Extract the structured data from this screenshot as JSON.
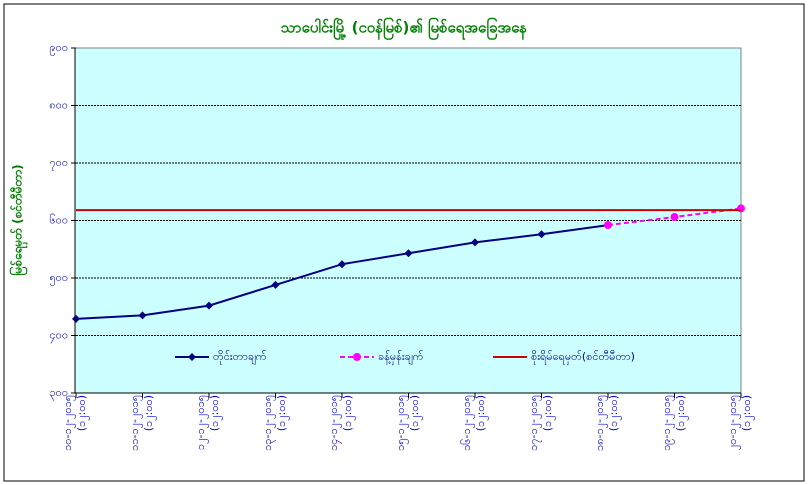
{
  "chart_data": {
    "type": "line",
    "title": "သာပေါင်းမြို့ (ငဝန်မြစ်)၏ မြစ်ရေအခြေအနေ",
    "y_label": "မြစ်ရေမှတ် (စင်တီမီတာ)",
    "categories": [
      "၁၀-၁၂-၂၀၁၅ (၁၂:၀၀)",
      "၁၁-၁၂-၂၀၁၅ (၁၂:၀၀)",
      "၁၂-၁၂-၂၀၁၅ (၁၂:၀၀)",
      "၁၃-၁၂-၂၀၁၅ (၁၂:၀၀)",
      "၁၄-၁၂-၂၀၁၅ (၁၂:၀၀)",
      "၁၅-၁၂-၂၀၁၅ (၁၂:၀၀)",
      "၁၆-၁၂-၂၀၁၅ (၁၂:၀၀)",
      "၁၇-၁၂-၂၀၁၅ (၁၂:၀၀)",
      "၁၈-၁၂-၂၀၁၅ (၁၂:၀၀)",
      "၁၉-၁၂-၂၀၁၅ (၁၂:၀၀)",
      "၂၀-၁၂-၂၀၁၅ (၁၂:၀၀)"
    ],
    "series": [
      {
        "name": "တိုင်းတာချက်",
        "color": "#000080",
        "marker": "diamond",
        "dashed": false,
        "values": [
          429,
          435,
          452,
          488,
          524,
          543,
          562,
          576,
          592,
          null,
          null
        ]
      },
      {
        "name": "ခန့်မှန်းချက်",
        "color": "#ff00ff",
        "marker": "circle",
        "dashed": true,
        "values": [
          null,
          null,
          null,
          null,
          null,
          null,
          null,
          null,
          592,
          606,
          621
        ]
      },
      {
        "name": "စိုးရိမ်ရေမှတ်(စင်တီမီတာ)",
        "color": "#cc0000",
        "marker": "none",
        "dashed": false,
        "values": [
          618,
          618,
          618,
          618,
          618,
          618,
          618,
          618,
          618,
          618,
          618
        ]
      }
    ],
    "ylim": [
      300,
      900
    ],
    "yticks": [
      {
        "value": 300,
        "label": "၃၀၀"
      },
      {
        "value": 400,
        "label": "၄၀၀"
      },
      {
        "value": 500,
        "label": "၅၀၀"
      },
      {
        "value": 600,
        "label": "၆၀၀"
      },
      {
        "value": 700,
        "label": "၇၀၀"
      },
      {
        "value": 800,
        "label": "၈၀၀"
      },
      {
        "value": 900,
        "label": "၉၀၀"
      }
    ],
    "grid": true,
    "plot_background": "#ccffff"
  }
}
